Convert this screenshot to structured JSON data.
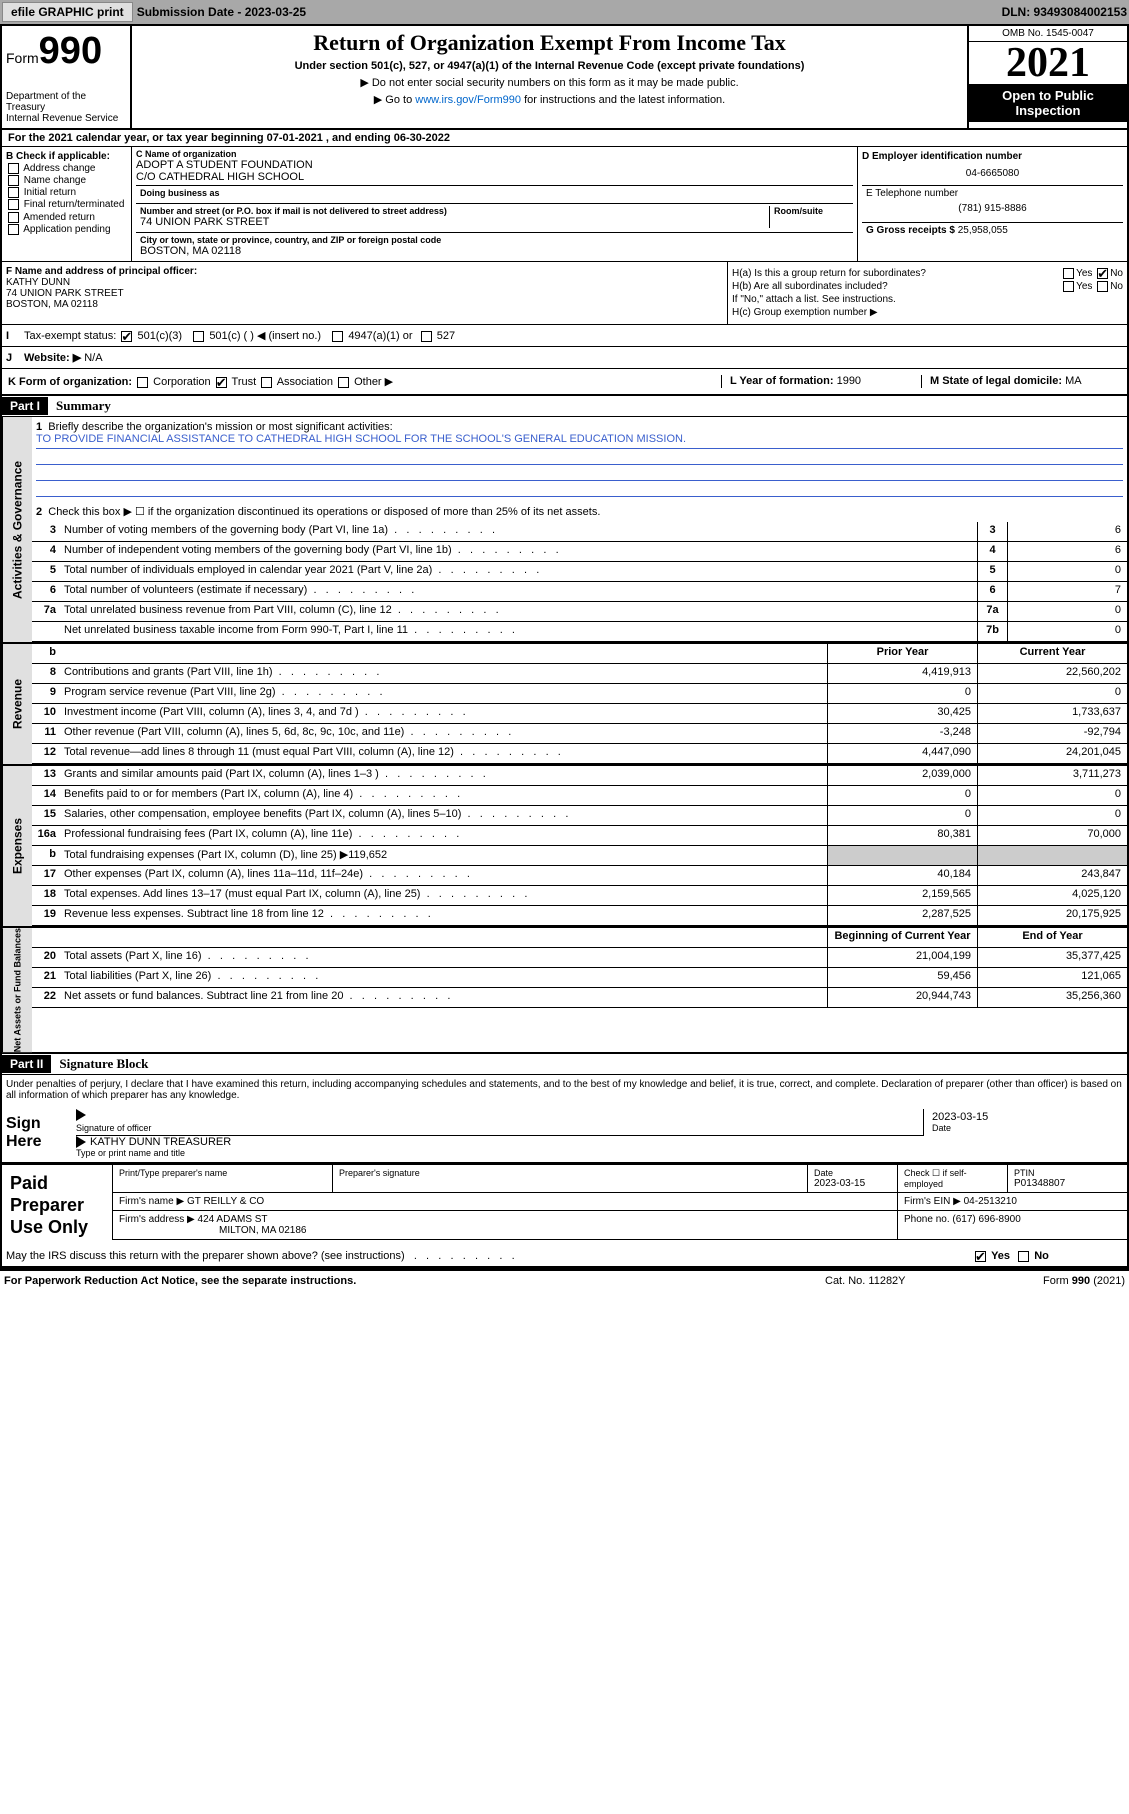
{
  "topbar": {
    "efile": "efile GRAPHIC print",
    "submission_label": "Submission Date - 2023-03-25",
    "dln": "DLN: 93493084002153"
  },
  "header": {
    "form_prefix": "Form",
    "form_num": "990",
    "title": "Return of Organization Exempt From Income Tax",
    "subtitle": "Under section 501(c), 527, or 4947(a)(1) of the Internal Revenue Code (except private foundations)",
    "note1": "▶ Do not enter social security numbers on this form as it may be made public.",
    "note2_prefix": "▶ Go to ",
    "note2_link": "www.irs.gov/Form990",
    "note2_suffix": " for instructions and the latest information.",
    "dept": "Department of the Treasury\nInternal Revenue Service",
    "omb": "OMB No. 1545-0047",
    "year": "2021",
    "open": "Open to Public Inspection"
  },
  "line_a": "For the 2021 calendar year, or tax year beginning 07-01-2021   , and ending 06-30-2022",
  "col_b": {
    "hdr": "B Check if applicable:",
    "items": [
      "Address change",
      "Name change",
      "Initial return",
      "Final return/terminated",
      "Amended return",
      "Application pending"
    ]
  },
  "col_c": {
    "name_label": "C Name of organization",
    "name1": "ADOPT A STUDENT FOUNDATION",
    "name2": "C/O CATHEDRAL HIGH SCHOOL",
    "dba_label": "Doing business as",
    "dba": "",
    "addr_label": "Number and street (or P.O. box if mail is not delivered to street address)",
    "room_label": "Room/suite",
    "addr": "74 UNION PARK STREET",
    "city_label": "City or town, state or province, country, and ZIP or foreign postal code",
    "city": "BOSTON, MA  02118"
  },
  "col_d": {
    "ein_label": "D Employer identification number",
    "ein": "04-6665080",
    "tel_label": "E Telephone number",
    "tel": "(781) 915-8886",
    "gross_label": "G Gross receipts $",
    "gross": "25,958,055"
  },
  "officer": {
    "f_label": "F  Name and address of principal officer:",
    "name": "KATHY DUNN",
    "addr1": "74 UNION PARK STREET",
    "addr2": "BOSTON, MA  02118"
  },
  "h": {
    "a": "H(a)  Is this a group return for subordinates?",
    "a_ans": "No",
    "b": "H(b)  Are all subordinates included?",
    "note": "If \"No,\" attach a list. See instructions.",
    "c": "H(c)  Group exemption number ▶"
  },
  "i": {
    "label": "Tax-exempt status:",
    "opt1": "501(c)(3)",
    "opt2": "501(c) (   ) ◀ (insert no.)",
    "opt3": "4947(a)(1) or",
    "opt4": "527"
  },
  "j": {
    "label": "Website: ▶",
    "val": "N/A"
  },
  "k": {
    "label": "K Form of organization:",
    "opts": [
      "Corporation",
      "Trust",
      "Association",
      "Other ▶"
    ],
    "checked": 1
  },
  "l": {
    "label": "L Year of formation:",
    "val": "1990"
  },
  "m": {
    "label": "M State of legal domicile:",
    "val": "MA"
  },
  "part1": {
    "hdr": "Part I",
    "title": "Summary"
  },
  "summary": {
    "q1_label": "Briefly describe the organization's mission or most significant activities:",
    "q1_text": "TO PROVIDE FINANCIAL ASSISTANCE TO CATHEDRAL HIGH SCHOOL FOR THE SCHOOL'S GENERAL EDUCATION MISSION.",
    "q2": "Check this box ▶ ☐  if the organization discontinued its operations or disposed of more than 25% of its net assets.",
    "rows_gov": [
      {
        "n": "3",
        "t": "Number of voting members of the governing body (Part VI, line 1a)",
        "c": "3",
        "v": "6"
      },
      {
        "n": "4",
        "t": "Number of independent voting members of the governing body (Part VI, line 1b)",
        "c": "4",
        "v": "6"
      },
      {
        "n": "5",
        "t": "Total number of individuals employed in calendar year 2021 (Part V, line 2a)",
        "c": "5",
        "v": "0"
      },
      {
        "n": "6",
        "t": "Total number of volunteers (estimate if necessary)",
        "c": "6",
        "v": "7"
      },
      {
        "n": "7a",
        "t": "Total unrelated business revenue from Part VIII, column (C), line 12",
        "c": "7a",
        "v": "0"
      },
      {
        "n": "",
        "t": "Net unrelated business taxable income from Form 990-T, Part I, line 11",
        "c": "7b",
        "v": "0"
      }
    ],
    "col_hdrs": {
      "prior": "Prior Year",
      "current": "Current Year"
    },
    "rows_rev": [
      {
        "n": "8",
        "t": "Contributions and grants (Part VIII, line 1h)",
        "p": "4,419,913",
        "c": "22,560,202"
      },
      {
        "n": "9",
        "t": "Program service revenue (Part VIII, line 2g)",
        "p": "0",
        "c": "0"
      },
      {
        "n": "10",
        "t": "Investment income (Part VIII, column (A), lines 3, 4, and 7d )",
        "p": "30,425",
        "c": "1,733,637"
      },
      {
        "n": "11",
        "t": "Other revenue (Part VIII, column (A), lines 5, 6d, 8c, 9c, 10c, and 11e)",
        "p": "-3,248",
        "c": "-92,794"
      },
      {
        "n": "12",
        "t": "Total revenue—add lines 8 through 11 (must equal Part VIII, column (A), line 12)",
        "p": "4,447,090",
        "c": "24,201,045"
      }
    ],
    "rows_exp": [
      {
        "n": "13",
        "t": "Grants and similar amounts paid (Part IX, column (A), lines 1–3 )",
        "p": "2,039,000",
        "c": "3,711,273"
      },
      {
        "n": "14",
        "t": "Benefits paid to or for members (Part IX, column (A), line 4)",
        "p": "0",
        "c": "0"
      },
      {
        "n": "15",
        "t": "Salaries, other compensation, employee benefits (Part IX, column (A), lines 5–10)",
        "p": "0",
        "c": "0"
      },
      {
        "n": "16a",
        "t": "Professional fundraising fees (Part IX, column (A), line 11e)",
        "p": "80,381",
        "c": "70,000"
      },
      {
        "n": "b",
        "t": "Total fundraising expenses (Part IX, column (D), line 25) ▶119,652",
        "p": "",
        "c": "",
        "shaded": true
      },
      {
        "n": "17",
        "t": "Other expenses (Part IX, column (A), lines 11a–11d, 11f–24e)",
        "p": "40,184",
        "c": "243,847"
      },
      {
        "n": "18",
        "t": "Total expenses. Add lines 13–17 (must equal Part IX, column (A), line 25)",
        "p": "2,159,565",
        "c": "4,025,120"
      },
      {
        "n": "19",
        "t": "Revenue less expenses. Subtract line 18 from line 12",
        "p": "2,287,525",
        "c": "20,175,925"
      }
    ],
    "net_hdrs": {
      "begin": "Beginning of Current Year",
      "end": "End of Year"
    },
    "rows_net": [
      {
        "n": "20",
        "t": "Total assets (Part X, line 16)",
        "p": "21,004,199",
        "c": "35,377,425"
      },
      {
        "n": "21",
        "t": "Total liabilities (Part X, line 26)",
        "p": "59,456",
        "c": "121,065"
      },
      {
        "n": "22",
        "t": "Net assets or fund balances. Subtract line 21 from line 20",
        "p": "20,944,743",
        "c": "35,256,360"
      }
    ]
  },
  "part2": {
    "hdr": "Part II",
    "title": "Signature Block",
    "decl": "Under penalties of perjury, I declare that I have examined this return, including accompanying schedules and statements, and to the best of my knowledge and belief, it is true, correct, and complete. Declaration of preparer (other than officer) is based on all information of which preparer has any knowledge."
  },
  "sign": {
    "label": "Sign Here",
    "sig_label": "Signature of officer",
    "date": "2023-03-15",
    "name": "KATHY DUNN TREASURER",
    "name_label": "Type or print name and title",
    "date_label": "Date"
  },
  "prep": {
    "label": "Paid Preparer Use Only",
    "r1": {
      "name_label": "Print/Type preparer's name",
      "sig_label": "Preparer's signature",
      "date_label": "Date",
      "date": "2023-03-15",
      "check_label": "Check ☐ if self-employed",
      "ptin_label": "PTIN",
      "ptin": "P01348807"
    },
    "r2": {
      "firm_label": "Firm's name   ▶",
      "firm": "GT REILLY & CO",
      "ein_label": "Firm's EIN ▶",
      "ein": "04-2513210"
    },
    "r3": {
      "addr_label": "Firm's address ▶",
      "addr": "424 ADAMS ST",
      "city": "MILTON, MA  02186",
      "phone_label": "Phone no.",
      "phone": "(617) 696-8900"
    }
  },
  "may": {
    "text": "May the IRS discuss this return with the preparer shown above? (see instructions)",
    "yes": "Yes",
    "no": "No"
  },
  "footer": {
    "left": "For Paperwork Reduction Act Notice, see the separate instructions.",
    "mid": "Cat. No. 11282Y",
    "right": "Form 990 (2021)"
  }
}
